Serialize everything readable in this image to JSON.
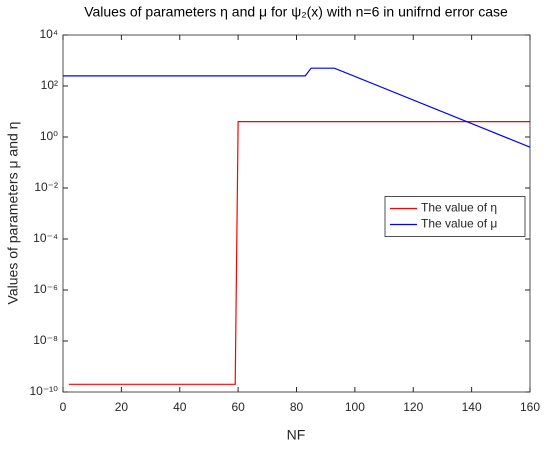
{
  "chart_data": {
    "type": "line",
    "title": "Values of parameters  η and  μ for ψ₂(x) with n=6 in unifrnd error case",
    "x_label": "NF",
    "y_label": "Values of parameters  μ and  η",
    "xlim": [
      0,
      160
    ],
    "xticks": [
      0,
      20,
      40,
      60,
      80,
      100,
      120,
      140,
      160
    ],
    "ylim": [
      1e-10,
      10000
    ],
    "y_scale": "log",
    "yticks": [
      {
        "value": 1e-10,
        "label": "10⁻¹⁰"
      },
      {
        "value": 1e-08,
        "label": "10⁻⁸"
      },
      {
        "value": 1e-06,
        "label": "10⁻⁶"
      },
      {
        "value": 0.0001,
        "label": "10⁻⁴"
      },
      {
        "value": 0.01,
        "label": "10⁻²"
      },
      {
        "value": 1,
        "label": "10⁰"
      },
      {
        "value": 100,
        "label": "10²"
      },
      {
        "value": 10000,
        "label": "10⁴"
      }
    ],
    "legend": "east",
    "series": [
      {
        "name": "The value of η",
        "color": "#ff0000",
        "x": [
          2,
          59,
          60,
          160
        ],
        "values": [
          2e-10,
          2e-10,
          4,
          4
        ]
      },
      {
        "name": "The value of μ",
        "color": "#0000ff",
        "x": [
          0,
          83,
          85,
          93,
          160
        ],
        "values": [
          250,
          250,
          500,
          500,
          0.4
        ]
      }
    ]
  }
}
